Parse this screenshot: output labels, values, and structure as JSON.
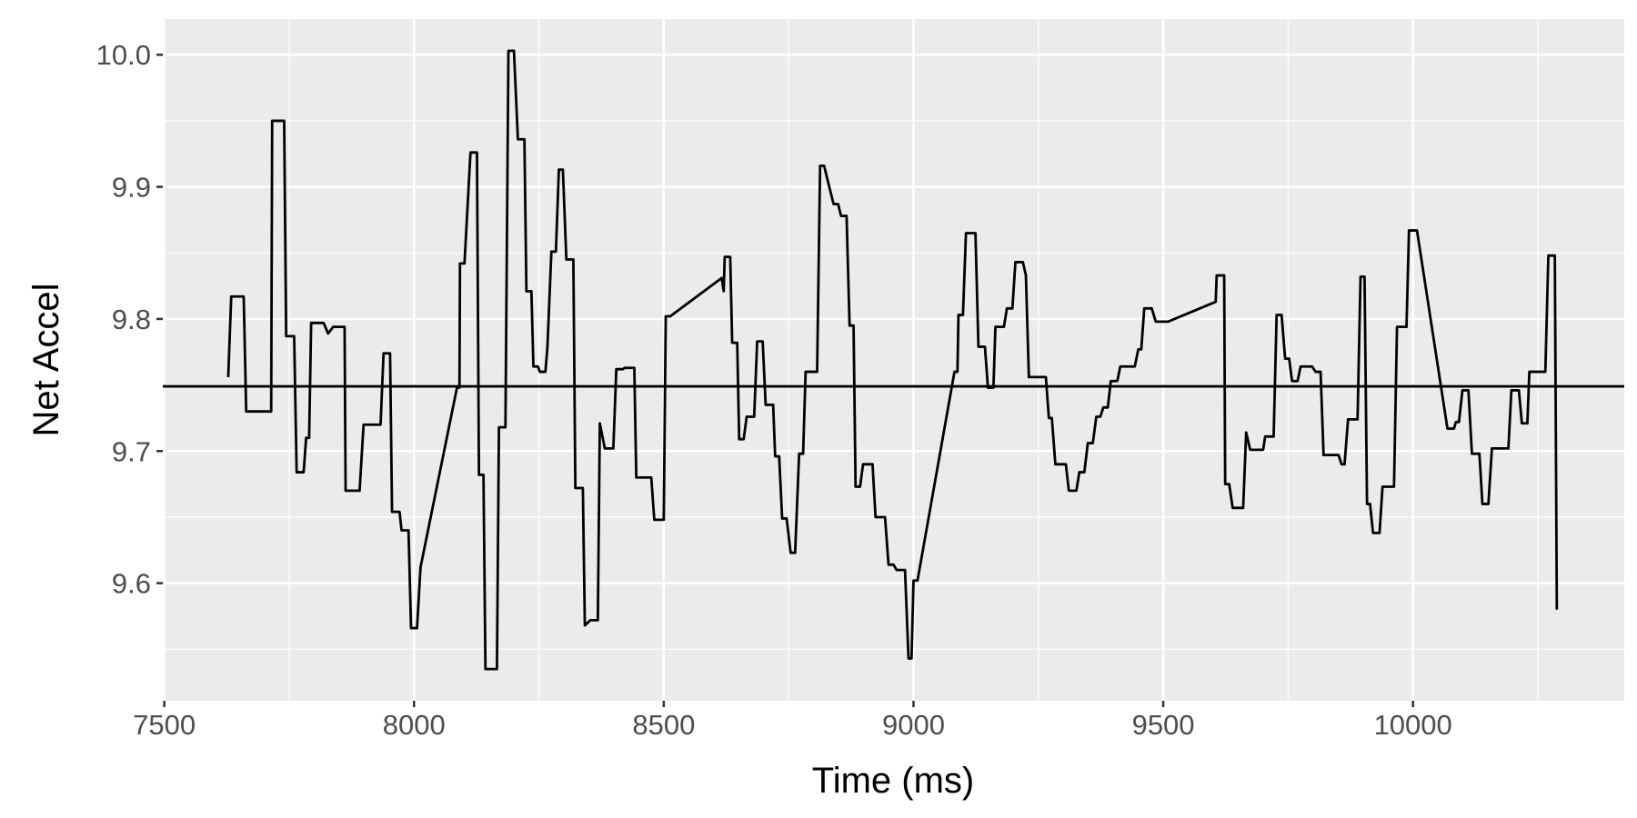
{
  "chart_data": {
    "type": "line",
    "xlabel": "Time (ms)",
    "ylabel": "Net Accel",
    "x": [
      7628,
      7634,
      7659,
      7664,
      7714,
      7716,
      7740,
      7744,
      7760,
      7765,
      7779,
      7784,
      7790,
      7794,
      7819,
      7828,
      7838,
      7861,
      7863,
      7891,
      7899,
      7933,
      7939,
      7952,
      7956,
      7971,
      7975,
      7989,
      7994,
      8006,
      8013,
      8086,
      8091,
      8092,
      8101,
      8113,
      8126,
      8130,
      8139,
      8143,
      8166,
      8170,
      8183,
      8189,
      8200,
      8208,
      8221,
      8225,
      8235,
      8239,
      8248,
      8252,
      8263,
      8267,
      8275,
      8284,
      8290,
      8298,
      8305,
      8319,
      8323,
      8338,
      8342,
      8353,
      8368,
      8372,
      8382,
      8399,
      8405,
      8418,
      8422,
      8441,
      8445,
      8475,
      8481,
      8500,
      8504,
      8513,
      8616,
      8620,
      8622,
      8633,
      8637,
      8647,
      8651,
      8660,
      8666,
      8681,
      8687,
      8698,
      8704,
      8719,
      8723,
      8731,
      8737,
      8746,
      8754,
      8763,
      8771,
      8779,
      8784,
      8807,
      8813,
      8821,
      8830,
      8840,
      8849,
      8855,
      8866,
      8872,
      8880,
      8884,
      8893,
      8899,
      8918,
      8924,
      8943,
      8950,
      8960,
      8966,
      8983,
      8990,
      8996,
      9000,
      9008,
      9082,
      9088,
      9090,
      9099,
      9105,
      9124,
      9130,
      9143,
      9149,
      9160,
      9164,
      9181,
      9187,
      9198,
      9204,
      9219,
      9225,
      9231,
      9265,
      9271,
      9277,
      9284,
      9305,
      9311,
      9326,
      9332,
      9342,
      9349,
      9359,
      9366,
      9374,
      9380,
      9389,
      9395,
      9408,
      9414,
      9443,
      9450,
      9456,
      9462,
      9477,
      9485,
      9510,
      9605,
      9607,
      9622,
      9624,
      9632,
      9639,
      9660,
      9666,
      9674,
      9700,
      9704,
      9721,
      9727,
      9737,
      9744,
      9752,
      9758,
      9769,
      9775,
      9798,
      9805,
      9815,
      9821,
      9851,
      9857,
      9863,
      9870,
      9889,
      9895,
      9903,
      9908,
      9914,
      9920,
      9933,
      9939,
      9962,
      9968,
      9987,
      9992,
      10008,
      10069,
      10082,
      10086,
      10092,
      10099,
      10111,
      10118,
      10133,
      10139,
      10151,
      10158,
      10191,
      10197,
      10212,
      10218,
      10229,
      10233,
      10265,
      10271,
      10284,
      10288
    ],
    "values": [
      9.756,
      9.817,
      9.817,
      9.73,
      9.73,
      9.95,
      9.95,
      9.787,
      9.787,
      9.684,
      9.684,
      9.71,
      9.71,
      9.797,
      9.797,
      9.789,
      9.794,
      9.794,
      9.67,
      9.67,
      9.72,
      9.72,
      9.774,
      9.774,
      9.654,
      9.654,
      9.64,
      9.64,
      9.566,
      9.566,
      9.612,
      9.748,
      9.748,
      9.842,
      9.842,
      9.926,
      9.926,
      9.682,
      9.682,
      9.535,
      9.535,
      9.718,
      9.718,
      10.003,
      10.003,
      9.936,
      9.936,
      9.821,
      9.821,
      9.764,
      9.764,
      9.76,
      9.76,
      9.778,
      9.851,
      9.851,
      9.913,
      9.913,
      9.845,
      9.845,
      9.672,
      9.672,
      9.568,
      9.572,
      9.572,
      9.721,
      9.702,
      9.702,
      9.762,
      9.762,
      9.763,
      9.763,
      9.68,
      9.68,
      9.648,
      9.648,
      9.802,
      9.802,
      9.831,
      9.821,
      9.847,
      9.847,
      9.782,
      9.782,
      9.709,
      9.709,
      9.726,
      9.726,
      9.783,
      9.783,
      9.735,
      9.735,
      9.696,
      9.696,
      9.649,
      9.649,
      9.623,
      9.623,
      9.698,
      9.698,
      9.76,
      9.76,
      9.916,
      9.916,
      9.902,
      9.887,
      9.887,
      9.878,
      9.878,
      9.795,
      9.795,
      9.673,
      9.673,
      9.69,
      9.69,
      9.65,
      9.65,
      9.614,
      9.614,
      9.61,
      9.61,
      9.543,
      9.543,
      9.602,
      9.602,
      9.76,
      9.76,
      9.803,
      9.803,
      9.865,
      9.865,
      9.779,
      9.779,
      9.748,
      9.748,
      9.794,
      9.794,
      9.808,
      9.808,
      9.843,
      9.843,
      9.833,
      9.756,
      9.756,
      9.725,
      9.725,
      9.69,
      9.69,
      9.67,
      9.67,
      9.684,
      9.684,
      9.706,
      9.706,
      9.726,
      9.726,
      9.733,
      9.733,
      9.753,
      9.753,
      9.764,
      9.764,
      9.777,
      9.777,
      9.808,
      9.808,
      9.798,
      9.798,
      9.813,
      9.833,
      9.833,
      9.675,
      9.675,
      9.657,
      9.657,
      9.714,
      9.701,
      9.701,
      9.711,
      9.711,
      9.803,
      9.803,
      9.77,
      9.77,
      9.753,
      9.753,
      9.764,
      9.764,
      9.76,
      9.76,
      9.697,
      9.697,
      9.69,
      9.69,
      9.724,
      9.724,
      9.832,
      9.832,
      9.66,
      9.66,
      9.638,
      9.638,
      9.673,
      9.673,
      9.794,
      9.794,
      9.867,
      9.867,
      9.717,
      9.717,
      9.722,
      9.722,
      9.746,
      9.746,
      9.698,
      9.698,
      9.66,
      9.66,
      9.702,
      9.702,
      9.746,
      9.746,
      9.721,
      9.721,
      9.76,
      9.76,
      9.848,
      9.848,
      9.58
    ],
    "color": "#000000",
    "hline": 9.749,
    "hline_color": "#000000",
    "xlim": [
      7497,
      10423
    ],
    "ylim": [
      9.511,
      10.027
    ],
    "xticks": [
      7500,
      8000,
      8500,
      9000,
      9500,
      10000
    ],
    "yticks": [
      9.6,
      9.7,
      9.8,
      9.9,
      {
        "value": 10,
        "label": "10.0"
      }
    ],
    "grid": true
  }
}
